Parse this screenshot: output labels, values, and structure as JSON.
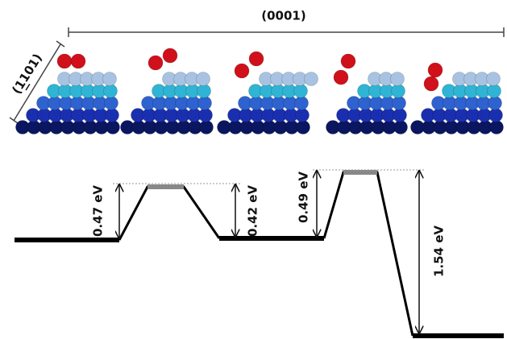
{
  "top_label": "(0001)",
  "side_label": "(1101)",
  "barriers": [
    "0.47 eV",
    "0.42 eV",
    "0.49 eV",
    "1.54 eV"
  ]
}
